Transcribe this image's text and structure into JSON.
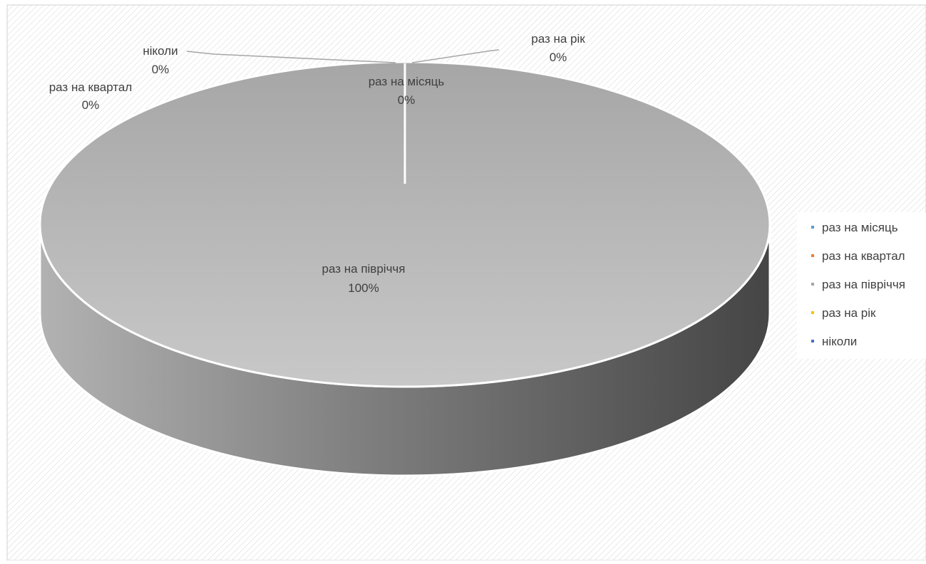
{
  "chart_data": {
    "type": "pie",
    "style": "3d",
    "categories": [
      "раз на місяць",
      "раз на квартал",
      "раз на півріччя",
      "раз на рік",
      "ніколи"
    ],
    "values": [
      0,
      0,
      100,
      0,
      0
    ],
    "data_labels": [
      {
        "name": "раз на місяць",
        "value": "0%"
      },
      {
        "name": "раз на квартал",
        "value": "0%"
      },
      {
        "name": "раз на півріччя",
        "value": "100%"
      },
      {
        "name": "раз на рік",
        "value": "0%"
      },
      {
        "name": "ніколи",
        "value": "0%"
      }
    ],
    "legend": {
      "placement": "right",
      "entries": [
        {
          "label": "раз на місяць",
          "color": "#5b9bd5"
        },
        {
          "label": "раз на квартал",
          "color": "#ed7d31"
        },
        {
          "label": "раз на півріччя",
          "color": "#a5a5a5"
        },
        {
          "label": "раз на рік",
          "color": "#ffc000"
        },
        {
          "label": "ніколи",
          "color": "#4472c4"
        }
      ]
    },
    "title": ""
  }
}
